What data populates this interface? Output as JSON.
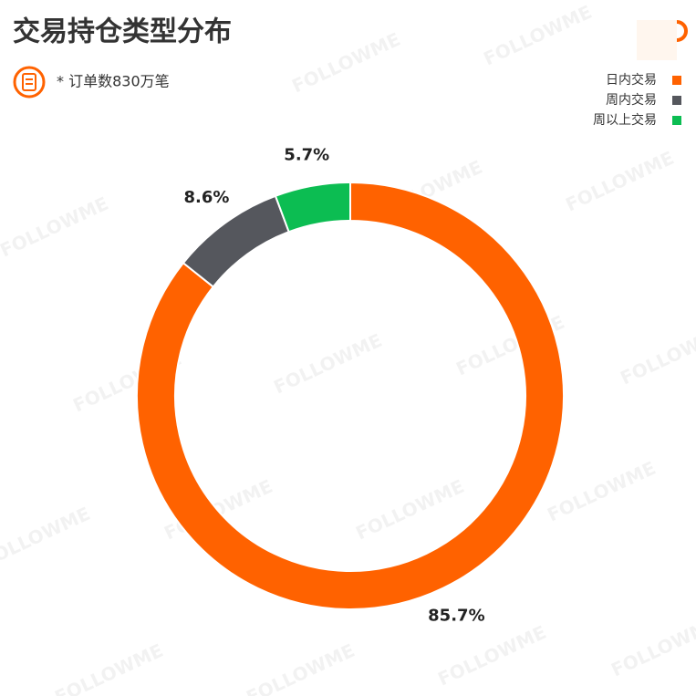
{
  "chart_data": {
    "type": "donut",
    "title": "交易持仓类型分布",
    "subtitle": "* 订单数830万笔",
    "watermark": "FOLLOWME",
    "categories": [
      "日内交易",
      "周内交易",
      "周以上交易"
    ],
    "values": [
      85.7,
      8.6,
      5.7
    ],
    "value_labels": [
      "85.7%",
      "8.6%",
      "5.7%"
    ],
    "colors": [
      "#ff6200",
      "#55575d",
      "#0cbd52"
    ],
    "legend": "top-right"
  }
}
